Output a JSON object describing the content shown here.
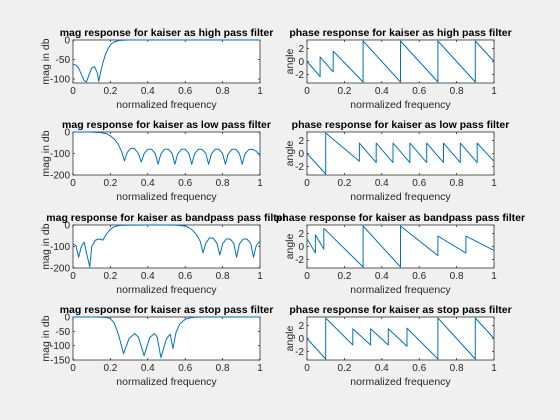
{
  "figure": {
    "background": "#f0f0f0",
    "series_color": "#0072bd"
  },
  "chart_data": [
    {
      "type": "line",
      "title": "mag response for kaiser as high pass filter",
      "xlabel": "normalized frequency",
      "ylabel": "mag in db",
      "xlim": [
        0,
        1
      ],
      "ylim": [
        -110,
        0
      ],
      "xticks": [
        0,
        0.2,
        0.4,
        0.6,
        0.8,
        1
      ],
      "xticklabels": [
        "0",
        "0.2",
        "0.4",
        "0.6",
        "0.8",
        "1"
      ],
      "yticks": [
        0,
        -50,
        -100
      ],
      "yticklabels": [
        "0",
        "-50",
        "-100"
      ],
      "series": [
        {
          "x": [
            0,
            0.015,
            0.03,
            0.045,
            0.06,
            0.072,
            0.085,
            0.1,
            0.115,
            0.13,
            0.138,
            0.145,
            0.16,
            0.175,
            0.19,
            0.205,
            0.22,
            0.235,
            0.25,
            0.265,
            0.28,
            0.3,
            0.35,
            0.4,
            0.5,
            0.6,
            0.7,
            0.8,
            0.9,
            1
          ],
          "values": [
            -62,
            -64,
            -72,
            -88,
            -104,
            -107,
            -90,
            -72,
            -68,
            -84,
            -106,
            -88,
            -58,
            -35,
            -20,
            -10,
            -5,
            -2.5,
            -1.2,
            -0.5,
            -0.2,
            -0.05,
            0,
            0,
            0,
            0,
            0,
            0,
            0,
            0
          ]
        }
      ]
    },
    {
      "type": "line",
      "title": "phase response for kaiser as high pass filter",
      "xlabel": "normalized frequency",
      "ylabel": "angle",
      "xlim": [
        0,
        1
      ],
      "ylim": [
        -3.3,
        3.3
      ],
      "xticks": [
        0,
        0.2,
        0.4,
        0.6,
        0.8,
        1
      ],
      "xticklabels": [
        "0",
        "0.2",
        "0.4",
        "0.6",
        "0.8",
        "1"
      ],
      "yticks": [
        2,
        0,
        -2
      ],
      "yticklabels": [
        "2",
        "0",
        "-2"
      ],
      "series": [
        {
          "x": [
            0,
            0.07,
            0.07,
            0.14,
            0.14,
            0.3,
            0.3,
            0.5,
            0.5,
            0.7,
            0.7,
            0.9,
            0.9,
            1
          ],
          "values": [
            0,
            -2.3,
            0.7,
            -1.6,
            1.6,
            -3.14,
            3.14,
            -3.14,
            3.14,
            -3.14,
            3.14,
            -3.14,
            3.14,
            0
          ]
        }
      ]
    },
    {
      "type": "line",
      "title": "mag response for kaiser as low pass filter",
      "xlabel": "normalized frequency",
      "ylabel": "mag in db",
      "xlim": [
        0,
        1
      ],
      "ylim": [
        -200,
        0
      ],
      "xticks": [
        0,
        0.2,
        0.4,
        0.6,
        0.8,
        1
      ],
      "xticklabels": [
        "0",
        "0.2",
        "0.4",
        "0.6",
        "0.8",
        "1"
      ],
      "yticks": [
        0,
        -100,
        -200
      ],
      "yticklabels": [
        "0",
        "-100",
        "-200"
      ],
      "series": [
        {
          "x": [
            0,
            0.05,
            0.1,
            0.15,
            0.18,
            0.2,
            0.22,
            0.24,
            0.26,
            0.275,
            0.29,
            0.31,
            0.33,
            0.35,
            0.365,
            0.38,
            0.4,
            0.42,
            0.44,
            0.455,
            0.47,
            0.49,
            0.51,
            0.53,
            0.545,
            0.56,
            0.58,
            0.6,
            0.62,
            0.635,
            0.65,
            0.67,
            0.69,
            0.71,
            0.725,
            0.74,
            0.76,
            0.78,
            0.8,
            0.815,
            0.83,
            0.85,
            0.87,
            0.89,
            0.905,
            0.92,
            0.94,
            0.96,
            0.98,
            1
          ],
          "values": [
            0,
            0,
            -0.5,
            -3,
            -8,
            -18,
            -32,
            -55,
            -90,
            -135,
            -95,
            -75,
            -78,
            -100,
            -140,
            -100,
            -80,
            -80,
            -100,
            -150,
            -102,
            -80,
            -80,
            -100,
            -150,
            -102,
            -80,
            -80,
            -100,
            -150,
            -102,
            -80,
            -80,
            -100,
            -150,
            -102,
            -80,
            -80,
            -100,
            -150,
            -102,
            -80,
            -80,
            -100,
            -150,
            -102,
            -82,
            -80,
            -90,
            -110
          ]
        }
      ]
    },
    {
      "type": "line",
      "title": "phase response for kaiser as low pass filter",
      "xlabel": "normalized frequency",
      "ylabel": "angle",
      "xlim": [
        0,
        1
      ],
      "ylim": [
        -3.3,
        3.3
      ],
      "xticks": [
        0,
        0.2,
        0.4,
        0.6,
        0.8,
        1
      ],
      "xticklabels": [
        "0",
        "0.2",
        "0.4",
        "0.6",
        "0.8",
        "1"
      ],
      "yticks": [
        2,
        0,
        -2
      ],
      "yticklabels": [
        "2",
        "0",
        "-2"
      ],
      "series": [
        {
          "x": [
            0,
            0.1,
            0.1,
            0.28,
            0.28,
            0.37,
            0.37,
            0.46,
            0.46,
            0.55,
            0.55,
            0.64,
            0.64,
            0.73,
            0.73,
            0.82,
            0.82,
            0.91,
            0.91,
            1
          ],
          "values": [
            0,
            -3.14,
            3.14,
            -1.2,
            1.6,
            -1.4,
            1.6,
            -1.4,
            1.6,
            -1.4,
            1.6,
            -1.4,
            1.6,
            -1.4,
            1.6,
            -1.4,
            1.6,
            -1.4,
            1.6,
            -1.2
          ]
        }
      ]
    },
    {
      "type": "line",
      "title": "mag response for kaiser as bandpass pass filter",
      "xlabel": "normalized frequency",
      "ylabel": "mag in db",
      "xlim": [
        0,
        1
      ],
      "ylim": [
        -200,
        0
      ],
      "xticks": [
        0,
        0.2,
        0.4,
        0.6,
        0.8,
        1
      ],
      "xticklabels": [
        "0",
        "0.2",
        "0.4",
        "0.6",
        "0.8",
        "1"
      ],
      "yticks": [
        0,
        -100,
        -200
      ],
      "yticklabels": [
        "0",
        "-100",
        "-200"
      ],
      "series": [
        {
          "x": [
            0,
            0.015,
            0.03,
            0.045,
            0.06,
            0.075,
            0.09,
            0.1,
            0.12,
            0.14,
            0.16,
            0.18,
            0.2,
            0.22,
            0.25,
            0.3,
            0.4,
            0.5,
            0.55,
            0.6,
            0.62,
            0.64,
            0.66,
            0.68,
            0.695,
            0.71,
            0.73,
            0.75,
            0.77,
            0.785,
            0.8,
            0.82,
            0.84,
            0.86,
            0.875,
            0.89,
            0.91,
            0.93,
            0.95,
            0.965,
            0.98,
            1
          ],
          "values": [
            -88,
            -95,
            -150,
            -100,
            -80,
            -140,
            -195,
            -100,
            -70,
            -65,
            -70,
            -40,
            -20,
            -8,
            -2,
            -0.3,
            0,
            0,
            -0.5,
            -5,
            -12,
            -25,
            -45,
            -75,
            -130,
            -85,
            -60,
            -62,
            -85,
            -140,
            -88,
            -65,
            -65,
            -85,
            -150,
            -88,
            -65,
            -65,
            -85,
            -150,
            -95,
            -75
          ]
        }
      ]
    },
    {
      "type": "line",
      "title": "phase response for kaiser as bandpass pass filter",
      "xlabel": "normalized frequency",
      "ylabel": "angle",
      "xlim": [
        0,
        1
      ],
      "ylim": [
        -3.3,
        3.3
      ],
      "xticks": [
        0,
        0.2,
        0.4,
        0.6,
        0.8,
        1
      ],
      "xticklabels": [
        "0",
        "0.2",
        "0.4",
        "0.6",
        "0.8",
        "1"
      ],
      "yticks": [
        2,
        0,
        -2
      ],
      "yticklabels": [
        "2",
        "0",
        "-2"
      ],
      "series": [
        {
          "x": [
            0,
            0.045,
            0.045,
            0.09,
            0.09,
            0.3,
            0.3,
            0.5,
            0.5,
            0.7,
            0.7,
            0.85,
            0.85,
            1
          ],
          "values": [
            1.2,
            -1.0,
            1.8,
            -0.4,
            2.8,
            -3.14,
            3.14,
            -3.14,
            3.14,
            -1.4,
            1.6,
            -1.0,
            1.6,
            -0.6
          ]
        }
      ]
    },
    {
      "type": "line",
      "title": "mag response for kaiser as stop pass filter",
      "xlabel": "normalized frequency",
      "ylabel": "mag in db",
      "xlim": [
        0,
        1
      ],
      "ylim": [
        -150,
        0
      ],
      "xticks": [
        0,
        0.2,
        0.4,
        0.6,
        0.8,
        1
      ],
      "xticklabels": [
        "0",
        "0.2",
        "0.4",
        "0.6",
        "0.8",
        "1"
      ],
      "yticks": [
        0,
        -50,
        -100,
        -150
      ],
      "yticklabels": [
        "0",
        "-50",
        "-100",
        "-150"
      ],
      "series": [
        {
          "x": [
            0,
            0.1,
            0.15,
            0.18,
            0.2,
            0.22,
            0.245,
            0.27,
            0.3,
            0.33,
            0.35,
            0.38,
            0.41,
            0.435,
            0.45,
            0.47,
            0.5,
            0.52,
            0.535,
            0.55,
            0.57,
            0.6,
            0.63,
            0.66,
            0.7,
            0.8,
            0.9,
            1
          ],
          "values": [
            0,
            0,
            -0.5,
            -2,
            -6,
            -20,
            -65,
            -128,
            -75,
            -58,
            -70,
            -135,
            -72,
            -58,
            -70,
            -142,
            -75,
            -60,
            -110,
            -55,
            -25,
            -8,
            -2,
            -0.5,
            0,
            0,
            0,
            0
          ]
        }
      ]
    },
    {
      "type": "line",
      "title": "phase response for kaiser as stop pass filter",
      "xlabel": "normalized frequency",
      "ylabel": "angle",
      "xlim": [
        0,
        1
      ],
      "ylim": [
        -3.3,
        3.3
      ],
      "xticks": [
        0,
        0.2,
        0.4,
        0.6,
        0.8,
        1
      ],
      "xticklabels": [
        "0",
        "0.2",
        "0.4",
        "0.6",
        "0.8",
        "1"
      ],
      "yticks": [
        2,
        0,
        -2
      ],
      "yticklabels": [
        "2",
        "0",
        "-2"
      ],
      "series": [
        {
          "x": [
            0,
            0.1,
            0.1,
            0.245,
            0.245,
            0.34,
            0.34,
            0.435,
            0.435,
            0.535,
            0.535,
            0.7,
            0.7,
            0.9,
            0.9,
            1
          ],
          "values": [
            0,
            -3.14,
            3.14,
            -1.0,
            1.5,
            -1.0,
            1.5,
            -1.0,
            1.5,
            -1.2,
            1.6,
            -3.14,
            3.14,
            -3.14,
            3.14,
            0
          ]
        }
      ]
    }
  ]
}
